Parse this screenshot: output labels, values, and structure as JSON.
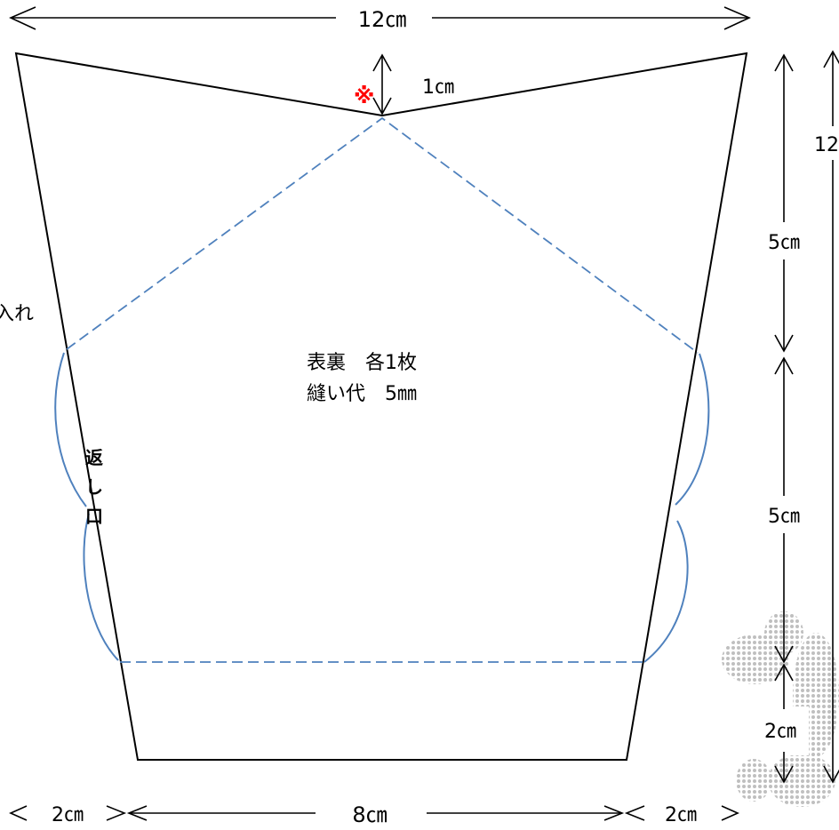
{
  "dimensions": {
    "top_width": "12㎝",
    "notch_depth": "1㎝",
    "right_upper": "5㎝",
    "right_middle": "5㎝",
    "right_lower": "2㎝",
    "right_total": "12",
    "bottom_left": "2㎝",
    "bottom_center": "8㎝",
    "bottom_right": "2㎝"
  },
  "labels": {
    "marker": "※",
    "side_note": "入れ",
    "opening": "返し口",
    "pieces": "表裏　各1枚",
    "seam_allowance": "縫い代　5㎜"
  },
  "colors": {
    "outline": "#000000",
    "stitch": "#4f81bd",
    "marker": "#ff0000"
  }
}
